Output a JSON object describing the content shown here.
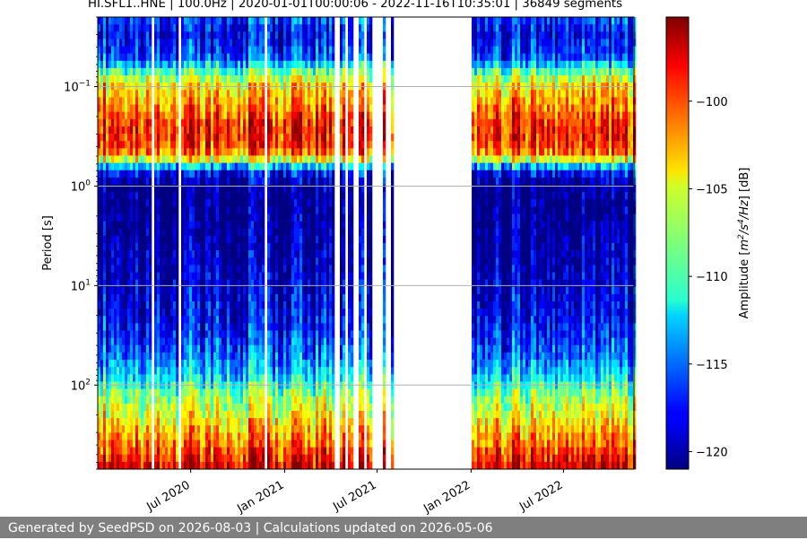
{
  "chart_data": {
    "type": "heatmap",
    "title": "HI.SFL1..HNE | 100.0Hz | 2020-01-01T00:00:06 - 2022-11-16T10:35:01 | 36849 segments",
    "ylabel": "Period [s]",
    "colorbar_label": "Amplitude [m²/s⁴/Hz] [dB]",
    "y_scale": "log",
    "y_inverted": true,
    "ylim": [
      0.02,
      700
    ],
    "y_ticks": [
      {
        "value": 0.1,
        "base": "10",
        "exp": "−1"
      },
      {
        "value": 1,
        "base": "10",
        "exp": "0"
      },
      {
        "value": 10,
        "base": "10",
        "exp": "1"
      },
      {
        "value": 100,
        "base": "10",
        "exp": "2"
      }
    ],
    "xlim": [
      "2020-01-01",
      "2022-11-16"
    ],
    "x_ticks": [
      {
        "date": "2020-07-01",
        "label": "Jul 2020"
      },
      {
        "date": "2021-01-01",
        "label": "Jan 2021"
      },
      {
        "date": "2021-07-01",
        "label": "Jul 2021"
      },
      {
        "date": "2022-01-01",
        "label": "Jan 2022"
      },
      {
        "date": "2022-07-01",
        "label": "Jul 2022"
      }
    ],
    "data_gap": [
      "2021-08-01",
      "2022-01-01"
    ],
    "colorbar": {
      "range": [
        -121,
        -95.2
      ],
      "ticks": [
        -100,
        -105,
        -110,
        -115,
        -120
      ],
      "tick_labels": [
        "−100",
        "−105",
        "−110",
        "−115",
        "−120"
      ],
      "colormap": "jet"
    },
    "grid": true,
    "approx_profile": {
      "periods_s": [
        0.02,
        0.03,
        0.05,
        0.07,
        0.1,
        0.15,
        0.25,
        0.35,
        0.45,
        0.55,
        0.7,
        1.0,
        2,
        5,
        10,
        20,
        30,
        50,
        80,
        120,
        200,
        400,
        700
      ],
      "db": [
        -116,
        -118,
        -116,
        -109,
        -104,
        -102,
        -99,
        -99,
        -101,
        -106,
        -117,
        -121,
        -121,
        -120,
        -119,
        -118,
        -117,
        -115,
        -112,
        -108,
        -105,
        -101,
        -97
      ]
    }
  },
  "footer": {
    "text": "Generated by SeedPSD on 2026-08-03 | Calculations updated on 2026-05-06"
  }
}
